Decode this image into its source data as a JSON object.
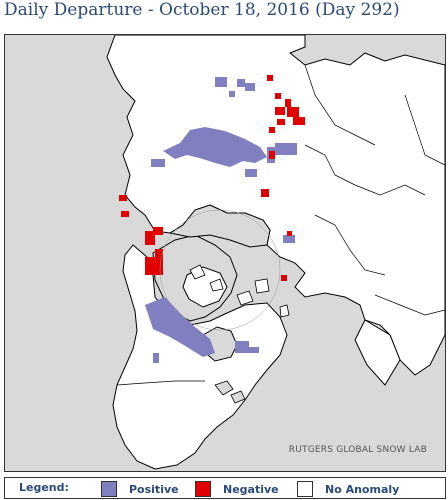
{
  "title": "Daily Departure - October 18, 2016 (Day 292)",
  "credit": "RUTGERS GLOBAL SNOW LAB",
  "legend": {
    "label": "Legend:",
    "items": [
      {
        "label": "Positive",
        "color": "#8080c0"
      },
      {
        "label": "Negative",
        "color": "#e00000"
      },
      {
        "label": "No Anomaly",
        "color": "#ffffff"
      }
    ]
  },
  "colors": {
    "land": "#ffffff",
    "ocean": "#d9d9d9",
    "border": "#000000",
    "positive": "#8080c0",
    "negative": "#e00000",
    "title": "#2b4a7a"
  }
}
